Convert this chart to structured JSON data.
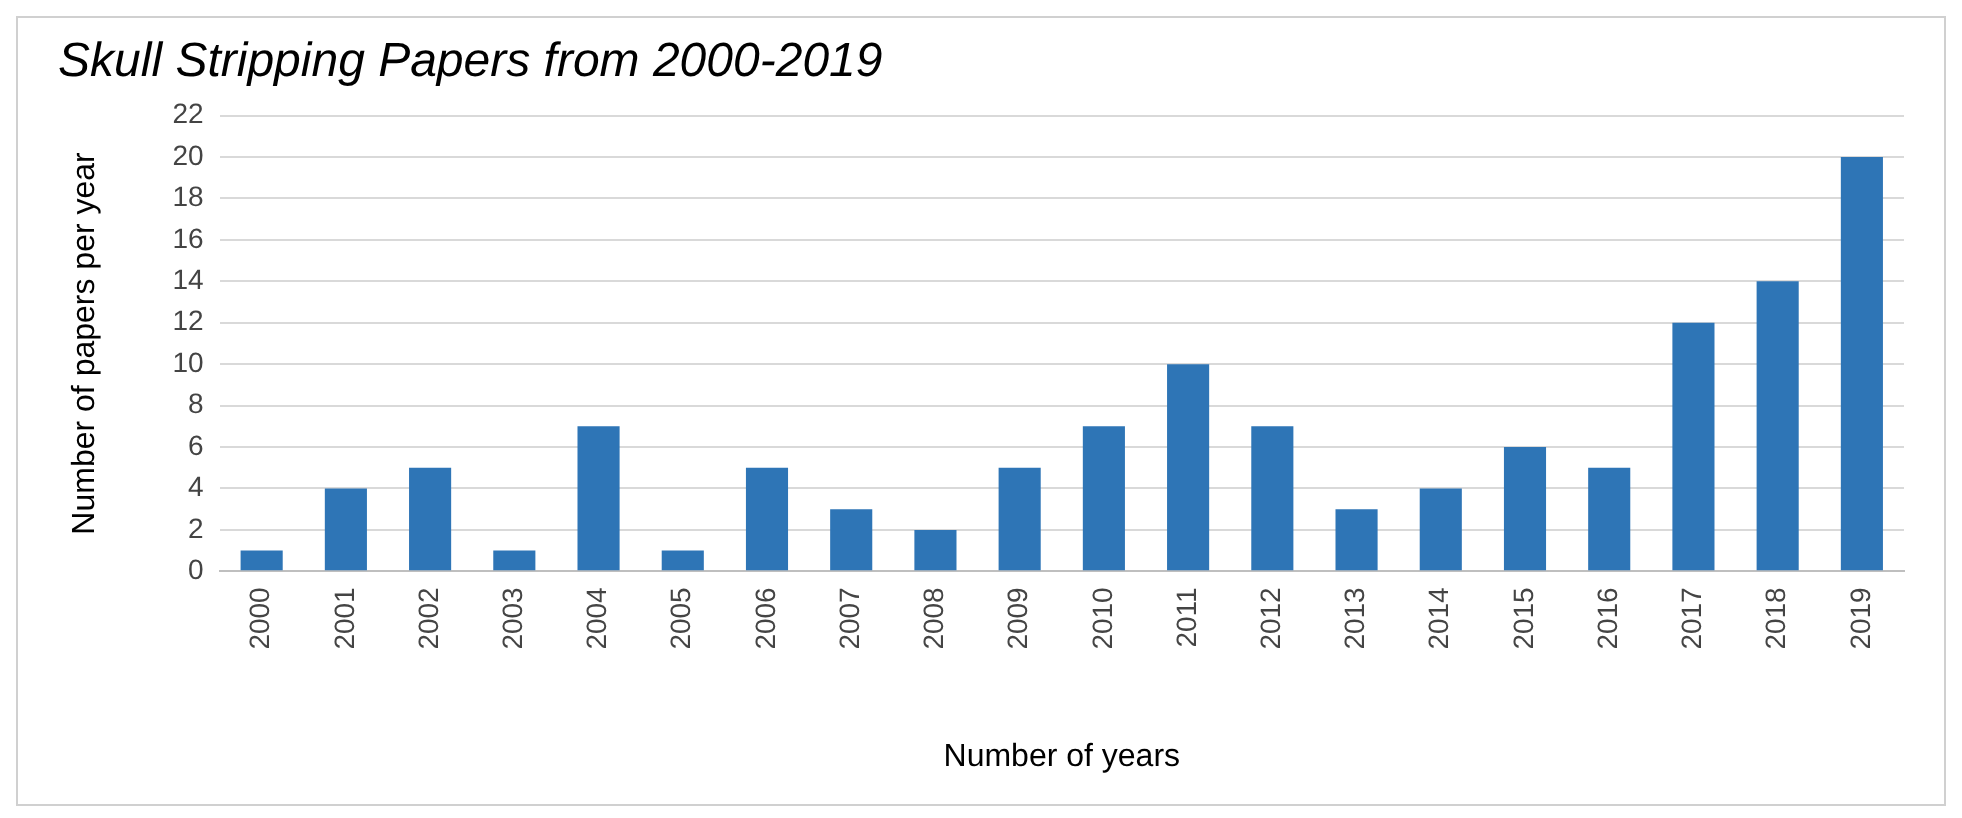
{
  "chart_data": {
    "type": "bar",
    "title": "Skull Stripping Papers from 2000-2019",
    "xlabel": "Number of years",
    "ylabel": "Number of papers per year",
    "categories": [
      "2000",
      "2001",
      "2002",
      "2003",
      "2004",
      "2005",
      "2006",
      "2007",
      "2008",
      "2009",
      "2010",
      "2011",
      "2012",
      "2013",
      "2014",
      "2015",
      "2016",
      "2017",
      "2018",
      "2019"
    ],
    "values": [
      1,
      4,
      5,
      1,
      7,
      1,
      5,
      3,
      2,
      5,
      7,
      10,
      7,
      3,
      4,
      6,
      5,
      12,
      14,
      20
    ],
    "color": "#2e75b6",
    "ylim": [
      0,
      22
    ],
    "yticks": [
      0,
      2,
      4,
      6,
      8,
      10,
      12,
      14,
      16,
      18,
      20,
      22
    ],
    "grid": "y"
  }
}
